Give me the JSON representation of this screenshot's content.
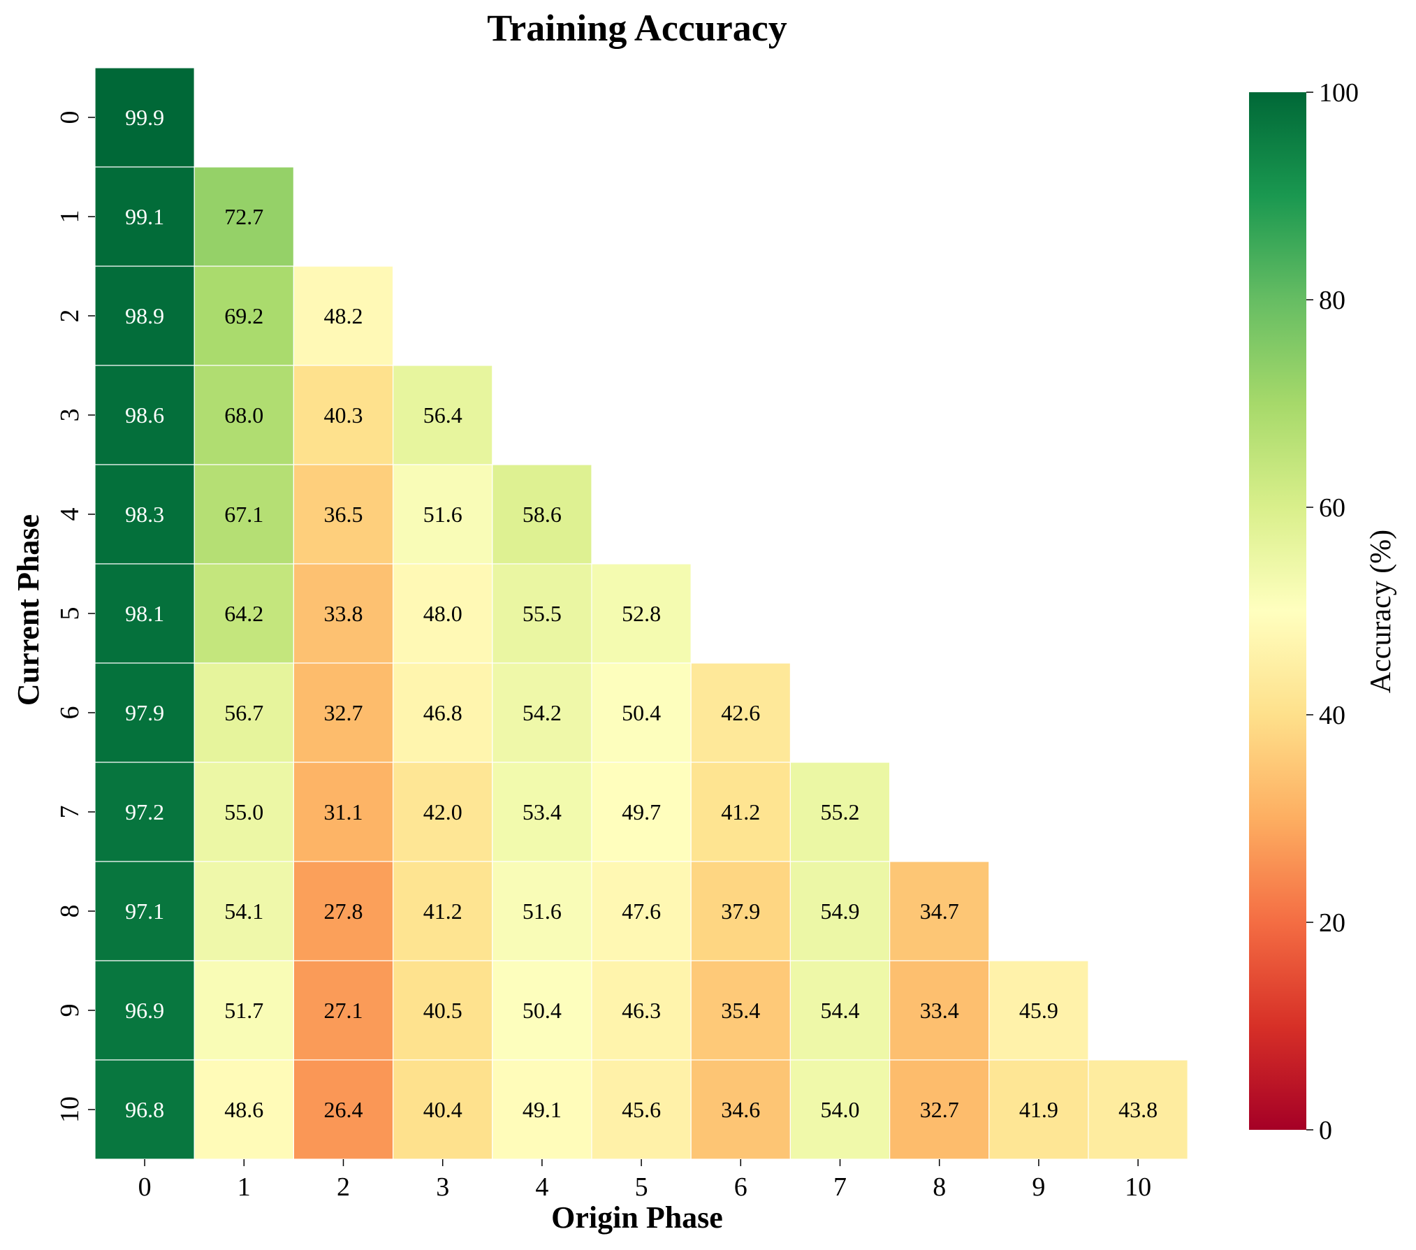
{
  "chart_data": {
    "type": "heatmap",
    "title": "Training Accuracy",
    "xlabel": "Origin Phase",
    "ylabel": "Current Phase",
    "x_categories": [
      "0",
      "1",
      "2",
      "3",
      "4",
      "5",
      "6",
      "7",
      "8",
      "9",
      "10"
    ],
    "y_categories": [
      "0",
      "1",
      "2",
      "3",
      "4",
      "5",
      "6",
      "7",
      "8",
      "9",
      "10"
    ],
    "matrix_shape": "lower-triangular",
    "values": [
      [
        99.9
      ],
      [
        99.1,
        72.7
      ],
      [
        98.9,
        69.2,
        48.2
      ],
      [
        98.6,
        68.0,
        40.3,
        56.4
      ],
      [
        98.3,
        67.1,
        36.5,
        51.6,
        58.6
      ],
      [
        98.1,
        64.2,
        33.8,
        48.0,
        55.5,
        52.8
      ],
      [
        97.9,
        56.7,
        32.7,
        46.8,
        54.2,
        50.4,
        42.6
      ],
      [
        97.2,
        55.0,
        31.1,
        42.0,
        53.4,
        49.7,
        41.2,
        55.2
      ],
      [
        97.1,
        54.1,
        27.8,
        41.2,
        51.6,
        47.6,
        37.9,
        54.9,
        34.7
      ],
      [
        96.9,
        51.7,
        27.1,
        40.5,
        50.4,
        46.3,
        35.4,
        54.4,
        33.4,
        45.9
      ],
      [
        96.8,
        48.6,
        26.4,
        40.4,
        49.1,
        45.6,
        34.6,
        54.0,
        32.7,
        41.9,
        43.8
      ]
    ],
    "value_format": "one decimal",
    "colorbar": {
      "label": "Accuracy (%)",
      "range": [
        0,
        100
      ],
      "ticks": [
        "0",
        "20",
        "40",
        "60",
        "80",
        "100"
      ],
      "colormap": "RdYlGn",
      "colors": [
        "#a50026",
        "#d73027",
        "#f46d43",
        "#fdae61",
        "#fee08b",
        "#ffffbf",
        "#d9ef8b",
        "#a6d96a",
        "#66bd63",
        "#1a9850",
        "#006837"
      ]
    },
    "grid": false,
    "legend": "colorbar right"
  }
}
